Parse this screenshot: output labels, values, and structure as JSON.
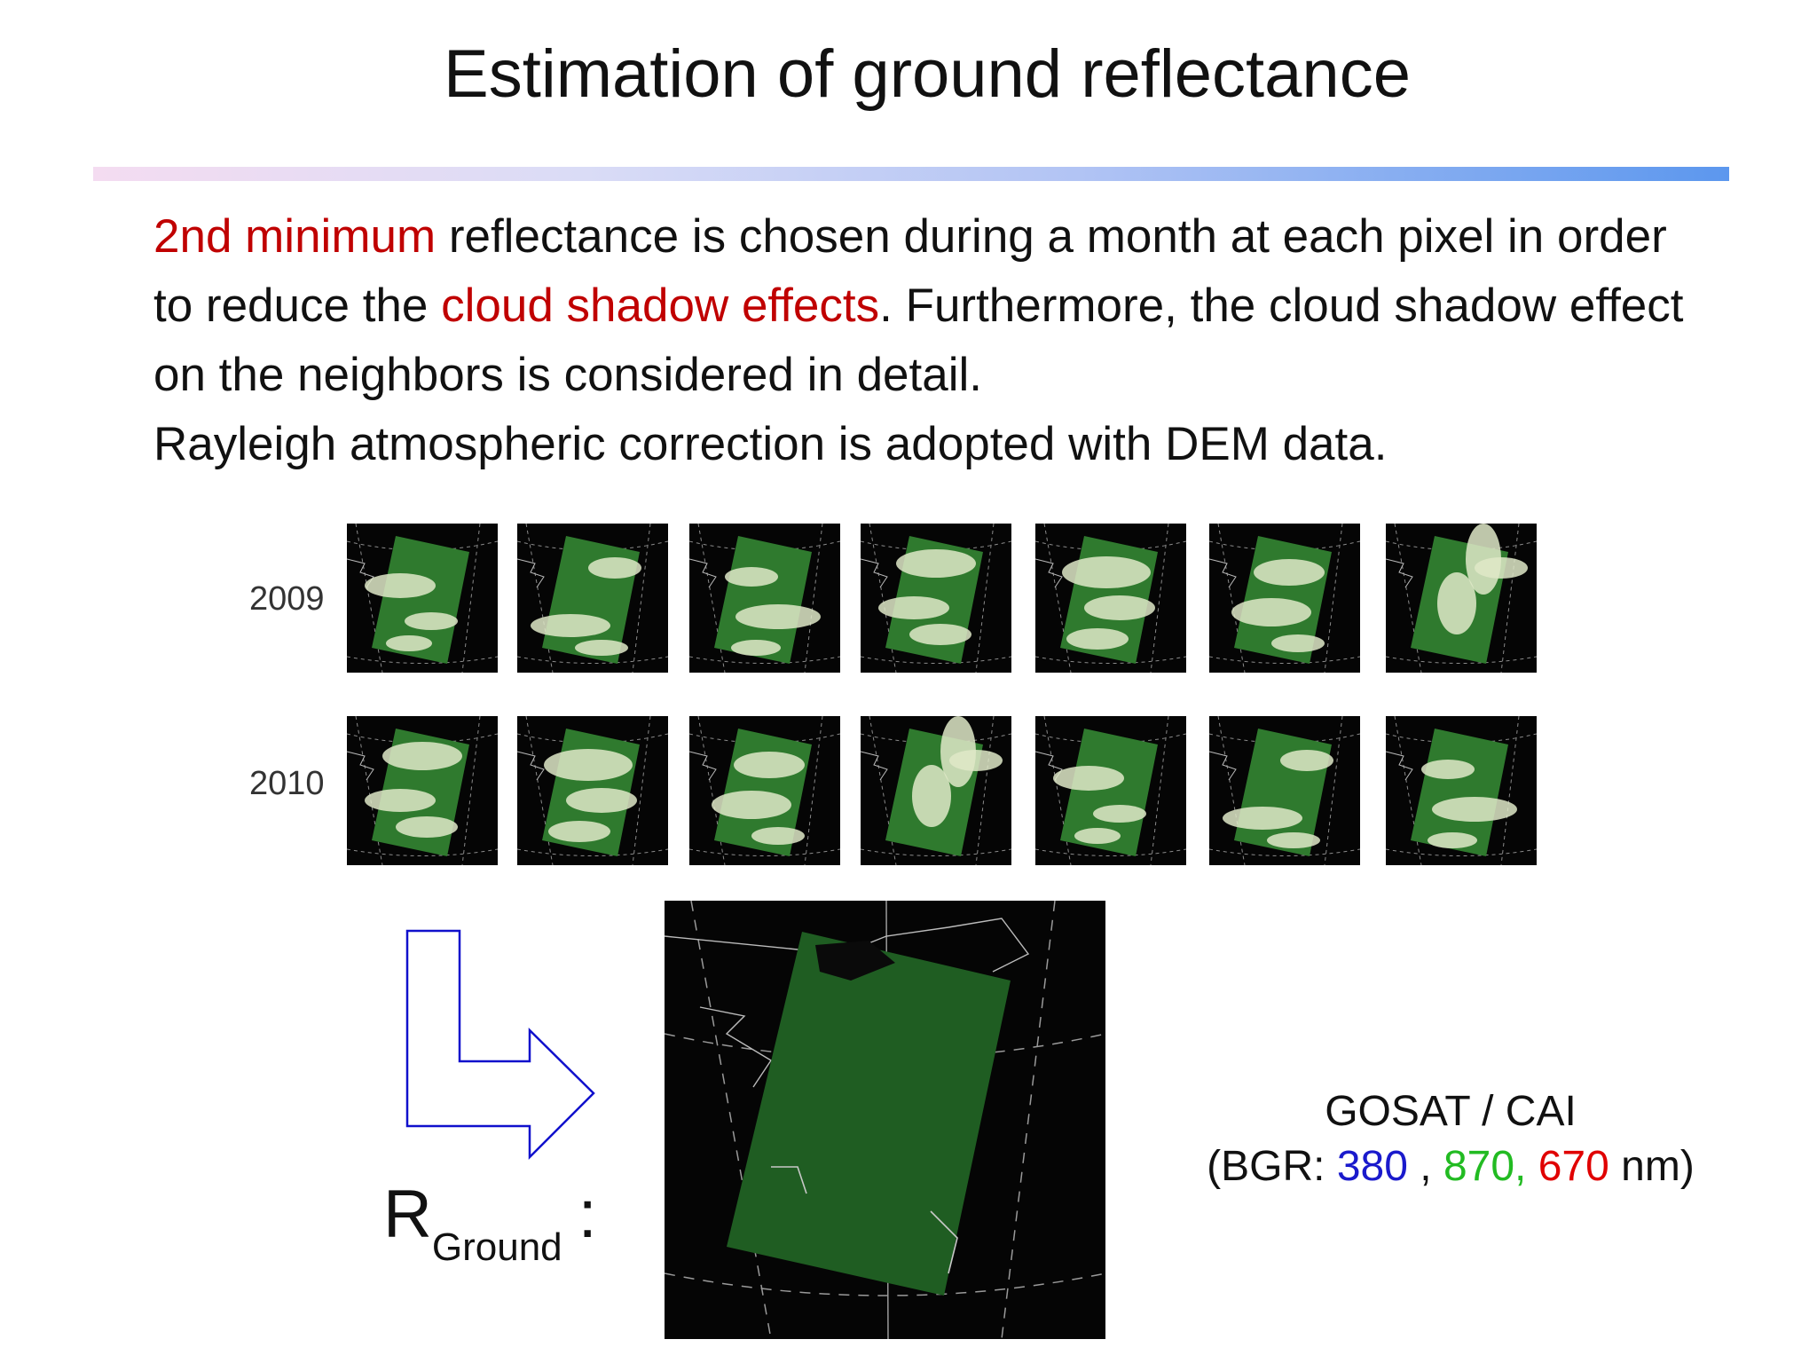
{
  "slide": {
    "title": "Estimation of ground reflectance",
    "para1": {
      "highlight": "2nd minimum",
      "text1": " reflectance is chosen during a month at each pixel in order to reduce the ",
      "highlight2": "cloud shadow effects",
      "text2": ". Furthermore, the cloud shadow effect on the neighbors is considered in detail."
    },
    "para2": "Rayleigh atmospheric correction is adopted with DEM data.",
    "rows": [
      {
        "year": "2009"
      },
      {
        "year": "2010"
      }
    ],
    "result_label": {
      "main": "R",
      "sub": "Ground",
      "colon": ":"
    },
    "sensor": {
      "name": "GOSAT / CAI",
      "prefix": "(BGR: ",
      "b": "380",
      "sep1": " , ",
      "g": "870,",
      "sep2": " ",
      "r": "670",
      "suffix": " nm)"
    },
    "colors": {
      "highlight": "#c00000",
      "blue": "#1a1acc",
      "green": "#22bb22",
      "red": "#e00000",
      "arrow": "#1010cc"
    }
  }
}
